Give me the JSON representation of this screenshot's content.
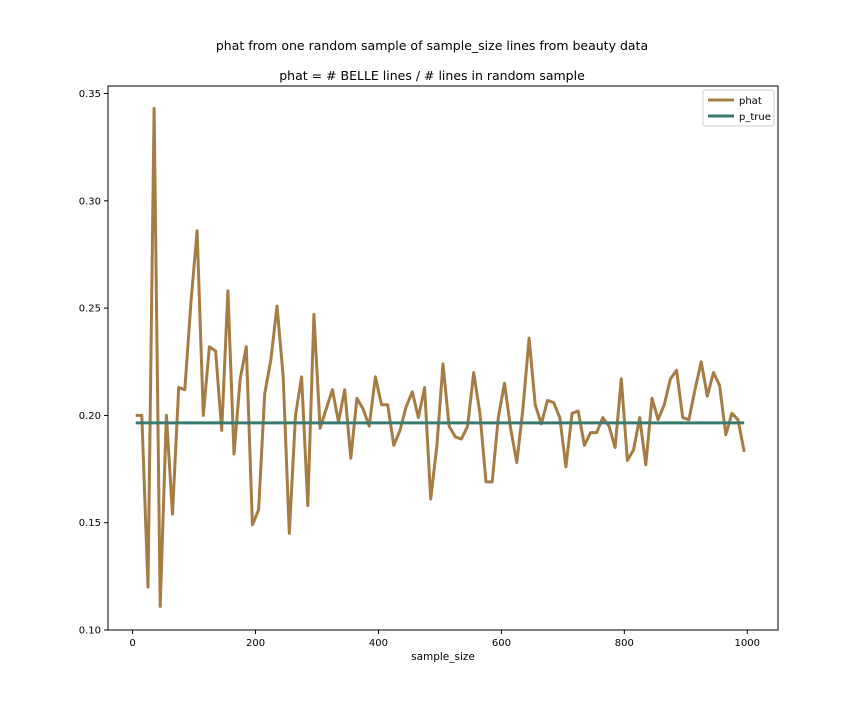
{
  "chart_data": {
    "type": "line",
    "title": "phat from one random sample of sample_size lines from beauty data",
    "subtitle": "phat = # BELLE lines / # lines in random sample",
    "xlabel": "sample_size",
    "ylabel": "",
    "xlim": [
      -40,
      1050
    ],
    "ylim": [
      0.1,
      0.3535
    ],
    "xticks": [
      0,
      200,
      400,
      600,
      800,
      1000
    ],
    "yticks": [
      0.1,
      0.15,
      0.2,
      0.25,
      0.3,
      0.35
    ],
    "legend": "top-right",
    "grid": false,
    "series": [
      {
        "name": "phat",
        "color": "#a67c45",
        "x": [
          5,
          15,
          25,
          35,
          45,
          55,
          65,
          75,
          85,
          95,
          105,
          115,
          125,
          135,
          145,
          155,
          165,
          175,
          185,
          195,
          205,
          215,
          225,
          235,
          245,
          255,
          265,
          275,
          285,
          295,
          305,
          315,
          325,
          335,
          345,
          355,
          365,
          375,
          385,
          395,
          405,
          415,
          425,
          435,
          445,
          455,
          465,
          475,
          485,
          495,
          505,
          515,
          525,
          535,
          545,
          555,
          565,
          575,
          585,
          595,
          605,
          615,
          625,
          635,
          645,
          655,
          665,
          675,
          685,
          695,
          705,
          715,
          725,
          735,
          745,
          755,
          765,
          775,
          785,
          795,
          805,
          815,
          825,
          835,
          845,
          855,
          865,
          875,
          885,
          895,
          905,
          915,
          925,
          935,
          945,
          955,
          965,
          975,
          985,
          995
        ],
        "y": [
          0.2,
          0.2,
          0.12,
          0.343,
          0.111,
          0.2,
          0.154,
          0.213,
          0.212,
          0.253,
          0.286,
          0.2,
          0.232,
          0.23,
          0.193,
          0.258,
          0.182,
          0.217,
          0.232,
          0.149,
          0.156,
          0.21,
          0.226,
          0.251,
          0.218,
          0.145,
          0.2,
          0.218,
          0.158,
          0.247,
          0.194,
          0.203,
          0.212,
          0.197,
          0.212,
          0.18,
          0.208,
          0.203,
          0.195,
          0.218,
          0.205,
          0.205,
          0.186,
          0.193,
          0.204,
          0.211,
          0.199,
          0.213,
          0.161,
          0.186,
          0.224,
          0.195,
          0.19,
          0.189,
          0.195,
          0.22,
          0.201,
          0.169,
          0.169,
          0.199,
          0.215,
          0.194,
          0.178,
          0.203,
          0.236,
          0.205,
          0.196,
          0.207,
          0.206,
          0.199,
          0.176,
          0.201,
          0.202,
          0.186,
          0.192,
          0.192,
          0.199,
          0.195,
          0.185,
          0.217,
          0.179,
          0.184,
          0.199,
          0.177,
          0.208,
          0.198,
          0.205,
          0.217,
          0.221,
          0.199,
          0.198,
          0.212,
          0.225,
          0.209,
          0.22,
          0.214,
          0.191,
          0.201,
          0.198,
          0.183
        ]
      },
      {
        "name": "p_true",
        "color": "#3a7a6e",
        "x": [
          5,
          995
        ],
        "y": [
          0.1965,
          0.1965
        ]
      }
    ]
  }
}
